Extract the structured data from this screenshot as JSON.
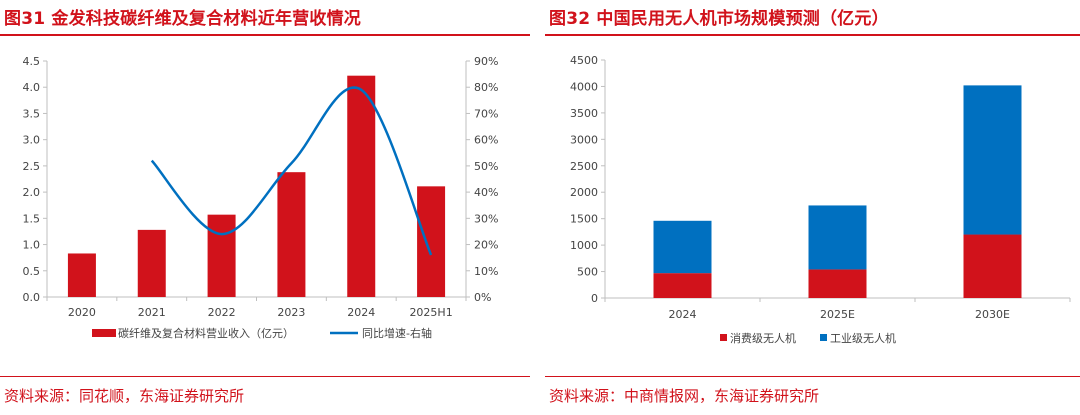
{
  "left_panel": {
    "title": "图31 金发科技碳纤维及复合材料近年营收情况",
    "source": "资料来源：同花顺，东海证券研究所"
  },
  "right_panel": {
    "title": "图32 中国民用无人机市场规模预测（亿元）",
    "source": "资料来源：中商情报网，东海证券研究所"
  },
  "colors": {
    "red": "#d1121b",
    "blue": "#0070c0",
    "axis": "#bfbfbf"
  },
  "chart_data": [
    {
      "type": "bar+line",
      "title": "图31 金发科技碳纤维及复合材料近年营收情况",
      "categories": [
        "2020",
        "2021",
        "2022",
        "2023",
        "2024",
        "2025H1"
      ],
      "series": [
        {
          "name": "碳纤维及复合材料营业收入（亿元）",
          "type": "bar",
          "axis": "left",
          "values": [
            0.83,
            1.28,
            1.57,
            2.38,
            4.22,
            2.11
          ]
        },
        {
          "name": "同比增速-右轴",
          "type": "line",
          "axis": "right",
          "values": [
            null,
            52,
            24,
            51,
            79,
            16
          ]
        }
      ],
      "ylim_left": [
        0,
        4.5
      ],
      "yticks_left": [
        "0.0",
        "0.5",
        "1.0",
        "1.5",
        "2.0",
        "2.5",
        "3.0",
        "3.5",
        "4.0",
        "4.5"
      ],
      "ylim_right": [
        0,
        90
      ],
      "yticks_right": [
        "0%",
        "10%",
        "20%",
        "30%",
        "40%",
        "50%",
        "60%",
        "70%",
        "80%",
        "90%"
      ],
      "legend": [
        "碳纤维及复合材料营业收入（亿元）",
        "同比增速-右轴"
      ],
      "legend_position": "bottom",
      "grid": false
    },
    {
      "type": "stacked-bar",
      "title": "图32 中国民用无人机市场规模预测（亿元）",
      "categories": [
        "2024",
        "2025E",
        "2030E"
      ],
      "series": [
        {
          "name": "消费级无人机",
          "values": [
            470,
            540,
            1200
          ]
        },
        {
          "name": "工业级无人机",
          "values": [
            990,
            1210,
            2820
          ]
        }
      ],
      "ylim": [
        0,
        4500
      ],
      "yticks": [
        "0",
        "500",
        "1000",
        "1500",
        "2000",
        "2500",
        "3000",
        "3500",
        "4000",
        "4500"
      ],
      "legend": [
        "消费级无人机",
        "工业级无人机"
      ],
      "legend_position": "bottom",
      "grid": false
    }
  ]
}
